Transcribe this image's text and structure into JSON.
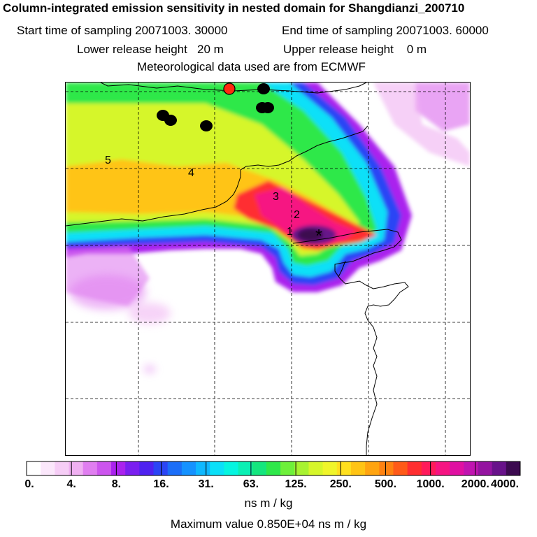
{
  "header": {
    "title": "Column-integrated emission sensitivity in nested domain for Shangdianzi_200710",
    "start_label": "Start time of sampling 20071003. 30000",
    "end_label": "End time of sampling 20071003. 60000",
    "lower_label": "Lower release height   20 m",
    "upper_label": "Upper release height    0 m",
    "met_label": "Meteorological data used are from ECMWF"
  },
  "map": {
    "trajectory_numbers": [
      "1",
      "2",
      "3",
      "4",
      "5"
    ],
    "release_marker": "*",
    "colors": {
      "white": "#ffffff",
      "coast": "#000000",
      "receptor": "#ff2a10"
    }
  },
  "colorscale": {
    "colors": [
      "#ffffff",
      "#fbe7fb",
      "#f6cdf6",
      "#f0b0f2",
      "#e07ef0",
      "#cc55ee",
      "#aa22ee",
      "#7a1ff0",
      "#4f22f0",
      "#2b45f5",
      "#1b6ef8",
      "#1592ff",
      "#0fb8ff",
      "#0ae0f8",
      "#05f5e0",
      "#0af0b4",
      "#14e67e",
      "#2ee84a",
      "#6ef03a",
      "#a8f230",
      "#d6f62a",
      "#f0f52a",
      "#ffe01e",
      "#ffc414",
      "#ffa410",
      "#ff8210",
      "#ff5a18",
      "#ff2e30",
      "#ff1a5a",
      "#f61482",
      "#e010a2",
      "#c014b0",
      "#9414a0",
      "#68128a",
      "#3c0a50"
    ],
    "labels": [
      "0.",
      "4.",
      "8.",
      "16.",
      "31.",
      "63.",
      "125.",
      "250.",
      "500.",
      "1000.",
      "2000.",
      "4000."
    ],
    "units": "ns m / kg",
    "maximum": "Maximum value  0.850E+04 ns m / kg"
  }
}
